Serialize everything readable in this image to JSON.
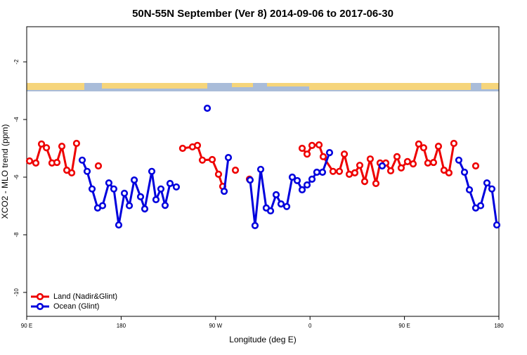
{
  "chart_data": {
    "type": "line",
    "title": "50N-55N September (Ver 8)   2014-09-06 to 2017-06-30",
    "x_label": "Longitude (deg E)",
    "y_label": "XCO2 - MLO trend (ppm)",
    "xlim": [
      90,
      540
    ],
    "ylim": [
      -10.83,
      -0.78
    ],
    "xticks": [
      {
        "value": 90,
        "label": "90 E"
      },
      180,
      {
        "value": 270,
        "label": "90 W"
      },
      {
        "value": 360,
        "label": "0"
      },
      {
        "value": 450,
        "label": "90 E"
      },
      {
        "value": 540,
        "label": "180"
      }
    ],
    "yticks": [
      -2,
      -4,
      -6,
      -8,
      -10
    ],
    "legend": "bottom-left",
    "series": [
      {
        "name": "Land (Nadir&Glint)",
        "color": "#ee0000",
        "x": [
          92.7,
          98.7,
          104.1,
          108.8,
          114.1,
          118.8,
          123.5,
          128.2,
          132.9,
          137.5,
          null,
          158.3,
          null,
          238.6,
          248.0,
          252.7,
          257.4,
          266.8,
          272.8,
          276.8,
          null,
          288.9,
          null,
          302.3,
          null,
          352.5,
          357.2,
          361.9,
          368.6,
          372.6,
          381.9,
          388.0,
          392.7,
          397.4,
          402.7,
          407.4,
          412.1,
          417.4,
          422.8,
          426.8,
          432.2,
          436.9,
          442.9,
          446.9,
          452.9,
          458.3,
          463.6,
          468.3,
          472.3,
          477.7,
          482.4,
          487.7,
          492.4,
          497.1,
          null,
          517.9
        ],
        "values": [
          -5.44,
          -5.51,
          -4.85,
          -4.98,
          -5.51,
          -5.49,
          -4.93,
          -5.76,
          -5.85,
          -4.83,
          null,
          -5.61,
          null,
          -5.0,
          -4.95,
          -4.9,
          -5.41,
          -5.39,
          -5.9,
          -6.32,
          null,
          -5.76,
          null,
          -6.07,
          null,
          -5.0,
          -5.2,
          -4.9,
          -4.88,
          -5.29,
          -5.8,
          -5.8,
          -5.2,
          -5.9,
          -5.85,
          -5.59,
          -6.15,
          -5.37,
          -6.22,
          -5.51,
          -5.51,
          -5.78,
          -5.29,
          -5.68,
          -5.46,
          -5.54,
          -4.85,
          -4.98,
          -5.51,
          -5.49,
          -4.93,
          -5.76,
          -5.85,
          -4.83,
          null,
          -5.61
        ]
      },
      {
        "name": "Ocean (Glint)",
        "color": "#0000dd",
        "x": [
          142.9,
          147.6,
          152.3,
          157.6,
          162.3,
          168.3,
          173.0,
          177.7,
          183.1,
          187.8,
          192.5,
          198.5,
          202.5,
          209.2,
          213.2,
          217.9,
          221.9,
          226.6,
          232.6,
          null,
          262.1,
          null,
          278.2,
          282.2,
          null,
          302.9,
          307.6,
          313.0,
          318.3,
          322.4,
          327.7,
          332.4,
          337.8,
          343.1,
          347.8,
          352.5,
          357.2,
          361.9,
          366.5,
          371.9,
          378.6,
          null,
          428.8,
          null,
          501.8,
          507.2,
          511.9,
          517.9,
          522.6,
          528.6,
          533.3,
          538.0
        ],
        "values": [
          -5.41,
          -5.8,
          -6.41,
          -7.07,
          -6.99,
          -6.2,
          -6.41,
          -7.66,
          -6.56,
          -6.99,
          -6.1,
          -6.68,
          -7.1,
          -5.8,
          -6.78,
          -6.41,
          -6.98,
          -6.22,
          -6.34,
          null,
          -3.61,
          null,
          -6.49,
          -5.32,
          null,
          -6.1,
          -7.68,
          -5.73,
          -7.07,
          -7.17,
          -6.61,
          -6.93,
          -7.02,
          -6.0,
          -6.12,
          -6.44,
          -6.27,
          -6.07,
          -5.83,
          -5.83,
          -5.15,
          null,
          -5.61,
          null,
          -5.41,
          -5.83,
          -6.44,
          -7.07,
          -6.99,
          -6.2,
          -6.41,
          -7.66
        ]
      }
    ]
  }
}
